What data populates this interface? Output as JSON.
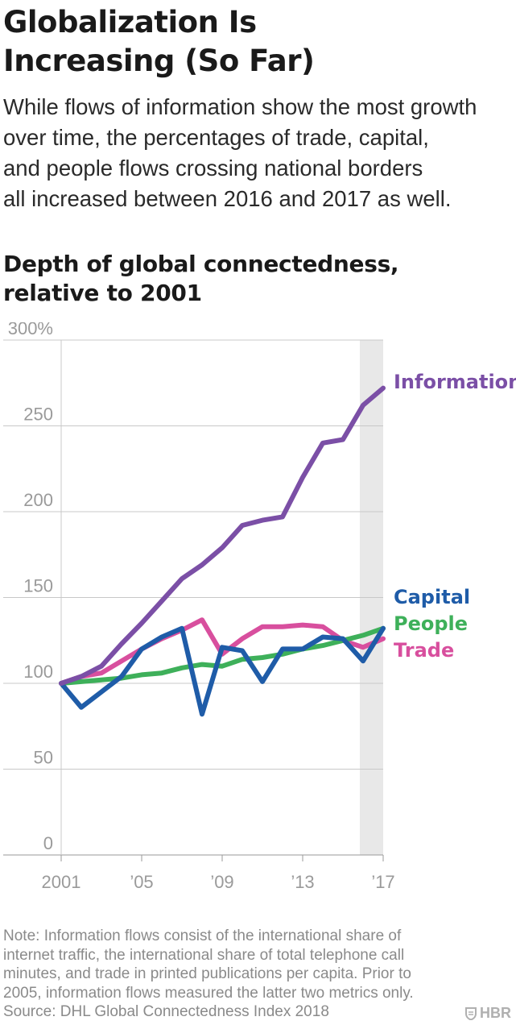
{
  "header": {
    "title_line1": "Globalization Is",
    "title_line2": "Increasing (So Far)",
    "subtitle_lines": [
      "While flows of information show the most growth",
      "over time, the percentages of trade, capital,",
      "and people flows crossing national borders",
      "all increased between 2016 and 2017 as well."
    ]
  },
  "chart_heading": {
    "line1": "Depth of global connectedness,",
    "line2": "relative to 2001"
  },
  "chart_data": {
    "type": "line",
    "title": "Depth of global connectedness, relative to 2001",
    "xlabel": "",
    "ylabel": "",
    "x": [
      2001,
      2002,
      2003,
      2004,
      2005,
      2006,
      2007,
      2008,
      2009,
      2010,
      2011,
      2012,
      2013,
      2014,
      2015,
      2016,
      2017
    ],
    "xlim": [
      2001,
      2017
    ],
    "ylim": [
      0,
      300
    ],
    "xticks": [
      {
        "value": 2001,
        "label": "2001"
      },
      {
        "value": 2005,
        "label": "’05"
      },
      {
        "value": 2009,
        "label": "’09"
      },
      {
        "value": 2013,
        "label": "’13"
      },
      {
        "value": 2017,
        "label": "’17"
      }
    ],
    "yticks": [
      {
        "value": 0,
        "label": "0"
      },
      {
        "value": 50,
        "label": "50"
      },
      {
        "value": 100,
        "label": "100"
      },
      {
        "value": 150,
        "label": "150"
      },
      {
        "value": 200,
        "label": "200"
      },
      {
        "value": 250,
        "label": "250"
      },
      {
        "value": 300,
        "label": "300%"
      }
    ],
    "highlight_range": [
      2016,
      2017
    ],
    "grid": true,
    "legend": "direct labels at right end of lines",
    "series": [
      {
        "name": "Information",
        "color": "#7b4fa6",
        "values": [
          100,
          104,
          110,
          123,
          135,
          148,
          161,
          169,
          179,
          192,
          195,
          197,
          220,
          240,
          242,
          262,
          272
        ]
      },
      {
        "name": "Capital",
        "color": "#1f5ca8",
        "values": [
          100,
          86,
          95,
          104,
          120,
          127,
          132,
          82,
          121,
          119,
          101,
          120,
          120,
          127,
          126,
          113,
          132
        ]
      },
      {
        "name": "People",
        "color": "#3eb05a",
        "values": [
          100,
          101,
          102,
          103,
          105,
          106,
          109,
          111,
          110,
          114,
          115,
          117,
          120,
          122,
          125,
          128,
          132
        ]
      },
      {
        "name": "Trade",
        "color": "#d84f9e",
        "values": [
          100,
          104,
          106,
          113,
          120,
          126,
          131,
          137,
          117,
          126,
          133,
          133,
          134,
          133,
          125,
          121,
          126
        ]
      }
    ]
  },
  "notes": {
    "lines": [
      "Note: Information flows consist of the international share of",
      "internet traffic, the international share of total telephone call",
      "minutes, and trade in printed publications per capita. Prior to",
      "2005, information flows measured the latter two metrics only.",
      "Source: DHL Global Connectedness Index 2018"
    ]
  },
  "brand": {
    "label": "HBR",
    "icon": "hbr-shield-icon"
  }
}
